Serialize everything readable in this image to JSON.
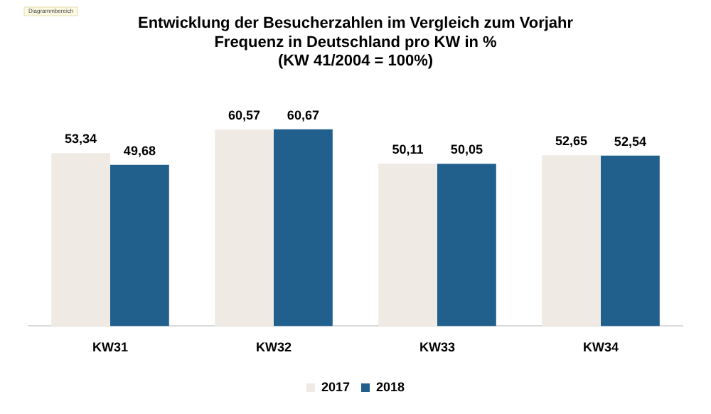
{
  "chart_data": {
    "type": "bar",
    "title": [
      "Entwicklung der Besucherzahlen im Vergleich zum Vorjahr",
      "Frequenz in Deutschland pro KW in %",
      "(KW 41/2004 = 100%)"
    ],
    "annotations": [
      "Diagrammbereich"
    ],
    "categories": [
      "KW31",
      "KW32",
      "KW33",
      "KW34"
    ],
    "series": [
      {
        "name": "2017",
        "color": "#efebe4",
        "values": [
          53.34,
          60.57,
          50.11,
          52.65
        ],
        "value_labels": [
          "53,34",
          "60,57",
          "50,11",
          "52,65"
        ]
      },
      {
        "name": "2018",
        "color": "#215f8d",
        "values": [
          49.68,
          60.67,
          50.05,
          52.54
        ],
        "value_labels": [
          "49,68",
          "60,67",
          "50,05",
          "52,54"
        ]
      }
    ],
    "grid": false,
    "legend": "bottom"
  }
}
